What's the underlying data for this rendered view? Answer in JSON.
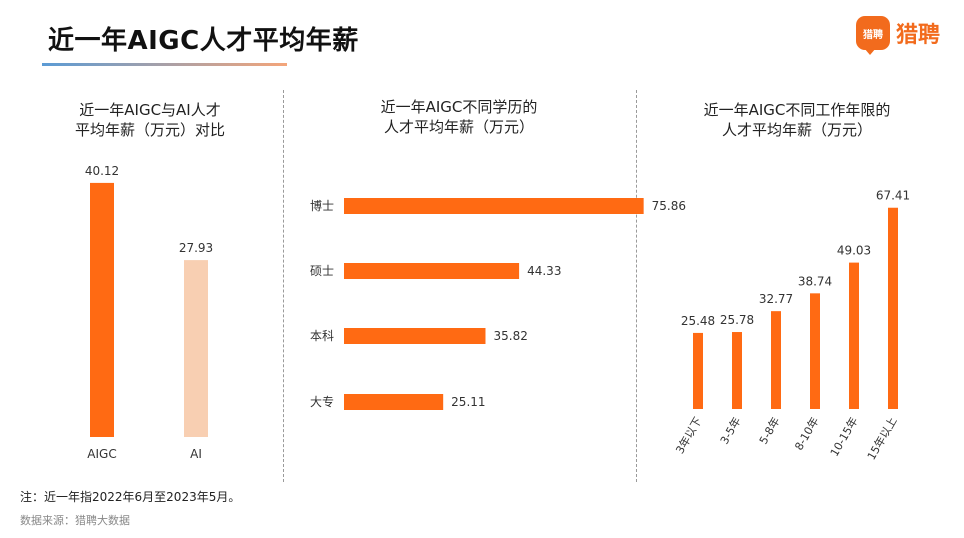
{
  "header": {
    "title": "近一年AIGC人才平均年薪",
    "brand_name": "猎聘",
    "brand_mark_text": "猎聘"
  },
  "colors": {
    "accent": "#ff6a13",
    "light": "#f8cfb2",
    "brand": "#f26b1d"
  },
  "chart_data": [
    {
      "type": "bar",
      "orientation": "vertical",
      "title": "近一年AIGC与AI人才\n平均年薪（万元）对比",
      "categories": [
        "AIGC",
        "AI"
      ],
      "values": [
        40.12,
        27.93
      ],
      "colors": [
        "#ff6a13",
        "#f8cfb2"
      ],
      "ylim": [
        0,
        45
      ]
    },
    {
      "type": "bar",
      "orientation": "horizontal",
      "title": "近一年AIGC不同学历的\n人才平均年薪（万元）",
      "categories": [
        "博士",
        "硕士",
        "本科",
        "大专"
      ],
      "values": [
        75.86,
        44.33,
        35.82,
        25.11
      ],
      "xlim": [
        0,
        80
      ]
    },
    {
      "type": "bar",
      "orientation": "vertical",
      "title": "近一年AIGC不同工作年限的\n人才平均年薪（万元）",
      "categories": [
        "3年以下",
        "3-5年",
        "5-8年",
        "8-10年",
        "10-15年",
        "15年以上"
      ],
      "values": [
        25.48,
        25.78,
        32.77,
        38.74,
        49.03,
        67.41
      ],
      "ylim": [
        0,
        70
      ]
    }
  ],
  "footer": {
    "note": "注：近一年指2022年6月至2023年5月。",
    "source": "数据来源：猎聘大数据"
  }
}
